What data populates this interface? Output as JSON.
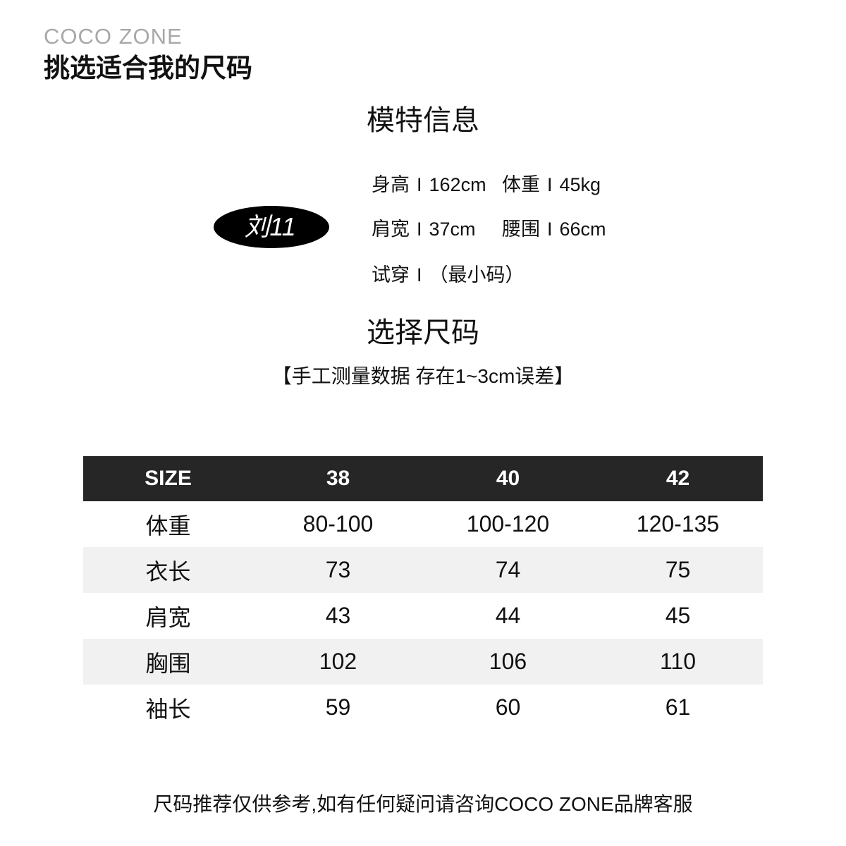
{
  "brand": {
    "logo": "COCO ZONE",
    "title": "挑选适合我的尺码"
  },
  "model_section": {
    "heading": "模特信息",
    "badge": "刘11",
    "separator": "I",
    "stats": [
      {
        "label": "身高",
        "value": "162cm"
      },
      {
        "label": "体重",
        "value": "45kg"
      },
      {
        "label": "肩宽",
        "value": "37cm"
      },
      {
        "label": "腰围",
        "value": "66cm"
      },
      {
        "label": "试穿",
        "value": "（最小码）"
      }
    ]
  },
  "size_section": {
    "heading": "选择尺码",
    "note": "【手工测量数据 存在1~3cm误差】"
  },
  "size_table": {
    "headers": [
      "SIZE",
      "38",
      "40",
      "42"
    ],
    "rows": [
      {
        "label": "体重",
        "values": [
          "80-100",
          "100-120",
          "120-135"
        ]
      },
      {
        "label": "衣长",
        "values": [
          "73",
          "74",
          "75"
        ]
      },
      {
        "label": "肩宽",
        "values": [
          "43",
          "44",
          "45"
        ]
      },
      {
        "label": "胸围",
        "values": [
          "102",
          "106",
          "110"
        ]
      },
      {
        "label": "袖长",
        "values": [
          "59",
          "60",
          "61"
        ]
      }
    ]
  },
  "footer": {
    "text": "尺码推荐仅供参考,如有任何疑问请咨询COCO ZONE品牌客服"
  },
  "colors": {
    "table_header_bg": "#262626",
    "table_alt_row_bg": "#f1f1f1",
    "logo_gray": "#a8a8a8",
    "badge_bg": "#000000",
    "badge_text": "#ffffff"
  }
}
